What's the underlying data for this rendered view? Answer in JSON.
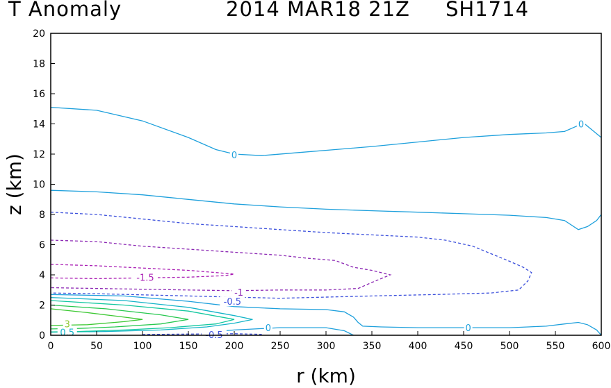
{
  "title": {
    "variable": "T Anomaly",
    "date": "2014 MAR18 21Z",
    "storm": "SH1714"
  },
  "chart_data": {
    "type": "contour",
    "xlabel": "r (km)",
    "ylabel": "z (km)",
    "xlim": [
      0,
      600
    ],
    "ylim": [
      0,
      20
    ],
    "xticks": [
      0,
      50,
      100,
      150,
      200,
      250,
      300,
      350,
      400,
      450,
      500,
      550,
      600
    ],
    "yticks": [
      0,
      2,
      4,
      6,
      8,
      10,
      12,
      14,
      16,
      18,
      20
    ],
    "grid": false,
    "contours": [
      {
        "level": 0,
        "color": "#1ea0dc",
        "dashed": false,
        "points": [
          [
            0,
            15.1
          ],
          [
            50,
            14.9
          ],
          [
            100,
            14.2
          ],
          [
            150,
            13.1
          ],
          [
            180,
            12.3
          ],
          [
            200,
            12.0
          ],
          [
            230,
            11.9
          ],
          [
            270,
            12.1
          ],
          [
            310,
            12.3
          ],
          [
            350,
            12.5
          ],
          [
            400,
            12.8
          ],
          [
            450,
            13.1
          ],
          [
            500,
            13.3
          ],
          [
            540,
            13.4
          ],
          [
            560,
            13.5
          ],
          [
            575,
            13.9
          ],
          [
            582,
            14.0
          ],
          [
            590,
            13.6
          ],
          [
            600,
            13.1
          ]
        ]
      },
      {
        "level": 0,
        "color": "#1ea0dc",
        "dashed": false,
        "points": [
          [
            0,
            9.6
          ],
          [
            50,
            9.5
          ],
          [
            100,
            9.3
          ],
          [
            150,
            9.0
          ],
          [
            200,
            8.7
          ],
          [
            250,
            8.5
          ],
          [
            300,
            8.35
          ],
          [
            350,
            8.25
          ],
          [
            400,
            8.15
          ],
          [
            450,
            8.05
          ],
          [
            500,
            7.95
          ],
          [
            540,
            7.8
          ],
          [
            560,
            7.6
          ],
          [
            575,
            7.0
          ],
          [
            585,
            7.2
          ],
          [
            595,
            7.6
          ],
          [
            600,
            8.0
          ]
        ]
      },
      {
        "level": -0.5,
        "color": "#3c50dc",
        "dashed": true,
        "points": [
          [
            0,
            8.15
          ],
          [
            50,
            8.0
          ],
          [
            100,
            7.7
          ],
          [
            150,
            7.4
          ],
          [
            200,
            7.2
          ],
          [
            250,
            7.0
          ],
          [
            300,
            6.8
          ],
          [
            350,
            6.65
          ],
          [
            400,
            6.5
          ],
          [
            430,
            6.3
          ],
          [
            460,
            5.9
          ],
          [
            480,
            5.4
          ],
          [
            500,
            4.9
          ],
          [
            515,
            4.5
          ],
          [
            524,
            4.15
          ],
          [
            520,
            3.6
          ],
          [
            510,
            3.0
          ],
          [
            480,
            2.8
          ],
          [
            420,
            2.7
          ],
          [
            350,
            2.6
          ],
          [
            250,
            2.45
          ],
          [
            150,
            2.6
          ],
          [
            50,
            2.75
          ],
          [
            0,
            2.8
          ]
        ]
      },
      {
        "level": -1,
        "color": "#8c28b4",
        "dashed": true,
        "points": [
          [
            0,
            6.3
          ],
          [
            50,
            6.2
          ],
          [
            100,
            5.9
          ],
          [
            150,
            5.7
          ],
          [
            200,
            5.5
          ],
          [
            250,
            5.3
          ],
          [
            280,
            5.1
          ],
          [
            310,
            4.95
          ],
          [
            330,
            4.5
          ],
          [
            350,
            4.3
          ],
          [
            370,
            4.0
          ],
          [
            350,
            3.5
          ],
          [
            335,
            3.1
          ],
          [
            300,
            3.0
          ],
          [
            250,
            3.0
          ],
          [
            200,
            2.95
          ],
          [
            150,
            3.0
          ],
          [
            100,
            3.05
          ],
          [
            50,
            3.1
          ],
          [
            0,
            3.15
          ]
        ]
      },
      {
        "level": -1.5,
        "color": "#aa1eb4",
        "dashed": true,
        "points": [
          [
            0,
            4.7
          ],
          [
            50,
            4.6
          ],
          [
            100,
            4.45
          ],
          [
            150,
            4.3
          ],
          [
            170,
            4.2
          ],
          [
            200,
            4.05
          ],
          [
            190,
            3.95
          ],
          [
            150,
            3.85
          ],
          [
            100,
            3.8
          ],
          [
            50,
            3.75
          ],
          [
            0,
            3.8
          ]
        ]
      },
      {
        "level": 0,
        "color": "#1ea0dc",
        "dashed": false,
        "points": [
          [
            0,
            2.7
          ],
          [
            80,
            2.6
          ],
          [
            150,
            2.25
          ],
          [
            200,
            1.9
          ],
          [
            250,
            1.75
          ],
          [
            300,
            1.7
          ],
          [
            320,
            1.55
          ],
          [
            330,
            1.2
          ],
          [
            335,
            0.85
          ],
          [
            340,
            0.6
          ],
          [
            360,
            0.55
          ],
          [
            400,
            0.5
          ],
          [
            450,
            0.5
          ],
          [
            500,
            0.5
          ],
          [
            540,
            0.6
          ],
          [
            560,
            0.75
          ],
          [
            575,
            0.85
          ],
          [
            585,
            0.7
          ],
          [
            595,
            0.35
          ],
          [
            600,
            0.0
          ]
        ]
      },
      {
        "level": 0,
        "color": "#1ea0dc",
        "dashed": false,
        "points": [
          [
            170,
            0.2
          ],
          [
            200,
            0.35
          ],
          [
            250,
            0.5
          ],
          [
            300,
            0.5
          ],
          [
            320,
            0.3
          ],
          [
            330,
            0.0
          ]
        ]
      },
      {
        "level": 0.5,
        "color": "#14b4c8",
        "dashed": false,
        "points": [
          [
            0,
            2.5
          ],
          [
            80,
            2.3
          ],
          [
            150,
            1.85
          ],
          [
            200,
            1.3
          ],
          [
            220,
            1.05
          ],
          [
            200,
            0.8
          ],
          [
            170,
            0.55
          ],
          [
            120,
            0.35
          ],
          [
            60,
            0.25
          ],
          [
            0,
            0.2
          ]
        ]
      },
      {
        "level": 1,
        "color": "#14c8a0",
        "dashed": false,
        "points": [
          [
            0,
            2.3
          ],
          [
            80,
            2.0
          ],
          [
            150,
            1.6
          ],
          [
            200,
            1.05
          ],
          [
            180,
            0.75
          ],
          [
            130,
            0.5
          ],
          [
            80,
            0.35
          ],
          [
            30,
            0.25
          ],
          [
            0,
            0.22
          ]
        ]
      },
      {
        "level": 2,
        "color": "#28c850",
        "dashed": false,
        "points": [
          [
            0,
            2.0
          ],
          [
            60,
            1.75
          ],
          [
            120,
            1.35
          ],
          [
            150,
            1.05
          ],
          [
            120,
            0.75
          ],
          [
            70,
            0.55
          ],
          [
            30,
            0.45
          ],
          [
            0,
            0.42
          ]
        ]
      },
      {
        "level": 3,
        "color": "#3cc832",
        "dashed": false,
        "points": [
          [
            0,
            1.75
          ],
          [
            40,
            1.5
          ],
          [
            80,
            1.2
          ],
          [
            100,
            1.05
          ],
          [
            80,
            0.9
          ],
          [
            40,
            0.7
          ],
          [
            0,
            0.65
          ]
        ]
      },
      {
        "level": -0.5,
        "color": "#3c50dc",
        "dashed": true,
        "points": [
          [
            100,
            0.05
          ],
          [
            150,
            0.08
          ],
          [
            200,
            0.1
          ],
          [
            230,
            0.06
          ]
        ]
      }
    ],
    "contour_labels": [
      {
        "text": "0",
        "x": 200,
        "y": 11.95,
        "color": "#1ea0dc"
      },
      {
        "text": "0",
        "x": 578,
        "y": 14.0,
        "color": "#1ea0dc"
      },
      {
        "text": "0",
        "x": 237,
        "y": 0.5,
        "color": "#1ea0dc"
      },
      {
        "text": "0",
        "x": 455,
        "y": 0.5,
        "color": "#1ea0dc"
      },
      {
        "text": "-1.5",
        "x": 103,
        "y": 3.85,
        "color": "#aa1eb4"
      },
      {
        "text": "-1",
        "x": 205,
        "y": 2.85,
        "color": "#8c28b4"
      },
      {
        "text": "-0.5",
        "x": 198,
        "y": 2.25,
        "color": "#3c50dc"
      },
      {
        "text": "-0.5",
        "x": 178,
        "y": 0.05,
        "color": "#3c50dc"
      },
      {
        "text": "3",
        "x": 18,
        "y": 0.75,
        "color": "#8cc832"
      },
      {
        "text": "0.5",
        "x": 18,
        "y": 0.2,
        "color": "#14b4c8"
      }
    ]
  }
}
